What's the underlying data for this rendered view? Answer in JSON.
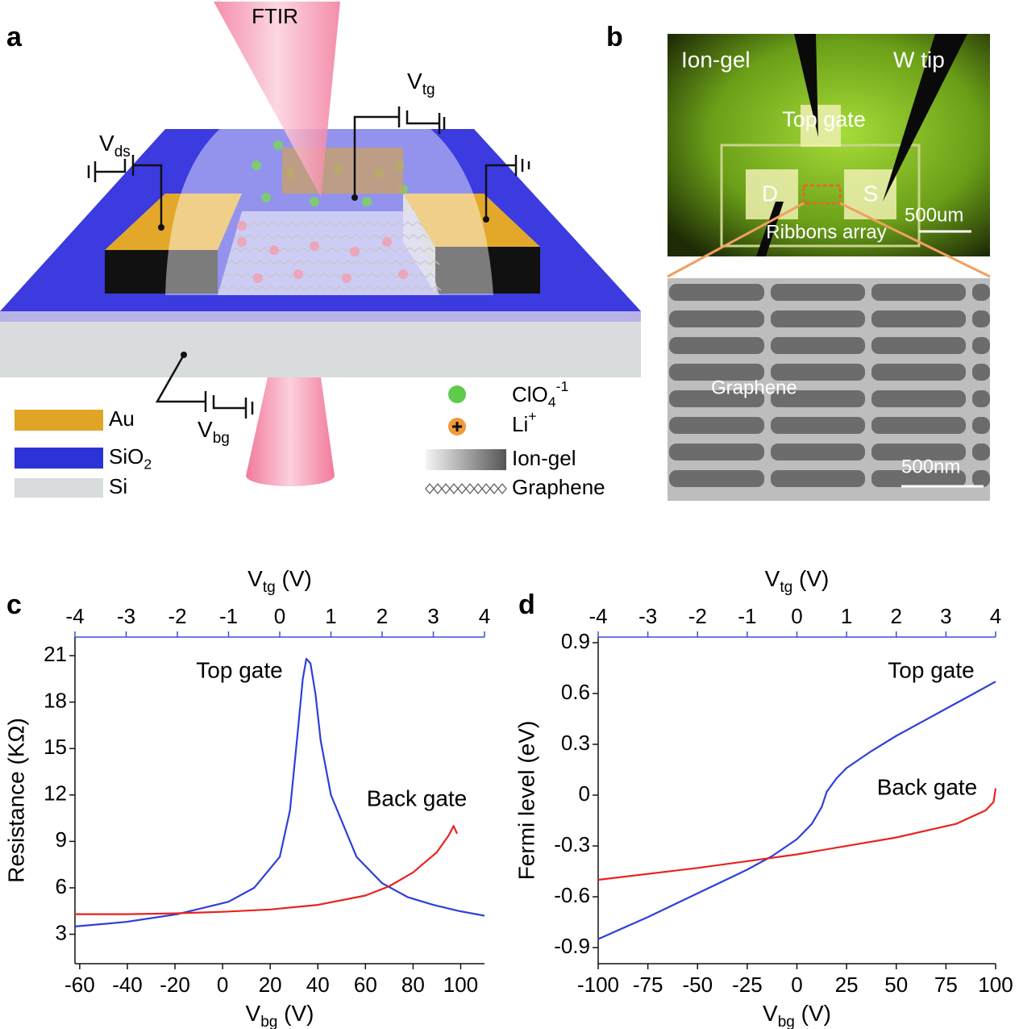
{
  "panel_labels": [
    "a",
    "b",
    "c",
    "d"
  ],
  "diagram_a": {
    "beam": "FTIR",
    "vtg": [
      {
        "t": "V"
      },
      {
        "sub": "tg"
      }
    ],
    "vds": [
      {
        "t": "V"
      },
      {
        "sub": "ds"
      }
    ],
    "vbg": [
      {
        "t": "V"
      },
      {
        "sub": "bg"
      }
    ],
    "legend": [
      "Au",
      [
        {
          "t": "SiO"
        },
        {
          "sub": "2"
        }
      ],
      "Si",
      [
        {
          "t": "ClO"
        },
        {
          "sub": "4"
        },
        {
          "sup": "-1"
        }
      ],
      [
        {
          "t": "Li"
        },
        {
          "sup": "+"
        }
      ],
      "Ion-gel",
      "Graphene"
    ]
  },
  "micrograph_b": {
    "ion_gel": "Ion-gel",
    "w_tip": "W tip",
    "top_gate": "Top gate",
    "drain": "D",
    "source": "S",
    "scale_top": "500um",
    "ribbons": "Ribbons array",
    "graphene": "Graphene",
    "scale_bottom": "500nm"
  },
  "chart_data": [
    {
      "type": "line",
      "xlabel": [
        {
          "t": "V"
        },
        {
          "sub": "bg"
        },
        {
          "t": " (V)"
        }
      ],
      "x2label": [
        {
          "t": "V"
        },
        {
          "sub": "tg"
        },
        {
          "t": " (V)"
        }
      ],
      "ylabel": "Resistance (KΩ)",
      "xlim": [
        -62,
        110
      ],
      "xticks": [
        -60,
        -40,
        -20,
        0,
        20,
        40,
        60,
        80,
        100
      ],
      "x2lim": [
        -4,
        4
      ],
      "x2ticks": [
        -4,
        -3,
        -2,
        -1,
        0,
        1,
        2,
        3,
        4
      ],
      "x2_axis_color": "#3b4fd8",
      "ylim": [
        1.1,
        22.2
      ],
      "yticks": [
        3,
        6,
        9,
        12,
        15,
        18,
        21
      ],
      "series": [
        {
          "name": "Top gate",
          "color": "#2f3fd9",
          "axis": "x2",
          "x": [
            -4,
            -3,
            -2,
            -1,
            -0.5,
            0,
            0.2,
            0.35,
            0.45,
            0.52,
            0.6,
            0.7,
            0.8,
            1,
            1.5,
            2,
            2.5,
            3,
            3.5,
            4
          ],
          "values": [
            3.5,
            3.8,
            4.3,
            5.1,
            6.0,
            8.0,
            11,
            16,
            19.5,
            20.8,
            20.5,
            18.5,
            15.5,
            12,
            8,
            6.3,
            5.4,
            4.9,
            4.5,
            4.2
          ]
        },
        {
          "name": "Back gate",
          "color": "#e8231f",
          "axis": "x",
          "x": [
            -62,
            -40,
            -20,
            0,
            20,
            40,
            60,
            70,
            80,
            90,
            95,
            97,
            98.5
          ],
          "values": [
            4.3,
            4.3,
            4.35,
            4.45,
            4.6,
            4.9,
            5.5,
            6.1,
            7.0,
            8.3,
            9.4,
            10.0,
            9.5
          ]
        }
      ]
    },
    {
      "type": "line",
      "xlabel": [
        {
          "t": "V"
        },
        {
          "sub": "bg"
        },
        {
          "t": " (V)"
        }
      ],
      "x2label": [
        {
          "t": "V"
        },
        {
          "sub": "tg"
        },
        {
          "t": " (V)"
        }
      ],
      "ylabel": "Fermi level (eV)",
      "xlim": [
        -100,
        100
      ],
      "xticks": [
        -100,
        -75,
        -50,
        -25,
        0,
        25,
        50,
        75,
        100
      ],
      "x2lim": [
        -4,
        4
      ],
      "x2ticks": [
        -4,
        -3,
        -2,
        -1,
        0,
        1,
        2,
        3,
        4
      ],
      "x2_axis_color": "#3b4fd8",
      "ylim": [
        -0.995,
        0.933
      ],
      "yticks": [
        -0.9,
        -0.6,
        -0.3,
        0,
        0.3,
        0.6,
        0.9
      ],
      "series": [
        {
          "name": "Top gate",
          "color": "#2f3fd9",
          "axis": "x2",
          "x": [
            -4,
            -3,
            -2,
            -1,
            -0.5,
            0,
            0.3,
            0.5,
            0.6,
            0.8,
            1,
            1.5,
            2,
            2.5,
            3,
            3.5,
            4
          ],
          "values": [
            -0.85,
            -0.72,
            -0.58,
            -0.44,
            -0.36,
            -0.26,
            -0.17,
            -0.07,
            0.02,
            0.1,
            0.16,
            0.26,
            0.35,
            0.43,
            0.51,
            0.59,
            0.67
          ]
        },
        {
          "name": "Back gate",
          "color": "#e8231f",
          "axis": "x",
          "x": [
            -100,
            -50,
            0,
            50,
            80,
            95,
            99,
            100
          ],
          "values": [
            -0.5,
            -0.43,
            -0.35,
            -0.25,
            -0.17,
            -0.09,
            -0.04,
            0.04
          ]
        }
      ]
    }
  ]
}
